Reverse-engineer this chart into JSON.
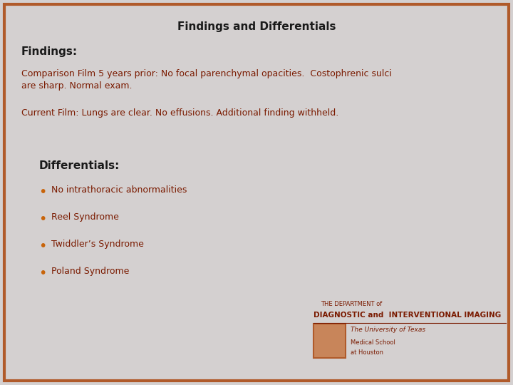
{
  "title": "Findings and Differentials",
  "background_color": "#d4d0d0",
  "border_color": "#b05a2a",
  "title_color": "#1a1a1a",
  "header_color": "#1a1a1a",
  "text_color": "#7a1a00",
  "findings_header": "Findings:",
  "comparison_text": "Comparison Film 5 years prior: No focal parenchymal opacities.  Costophrenic sulci\nare sharp. Normal exam.",
  "current_text": "Current Film: Lungs are clear. No effusions. Additional finding withheld.",
  "differentials_header": "Differentials:",
  "bullet_items": [
    "No intrathoracic abnormalities",
    "Reel Syndrome",
    "Twiddler’s Syndrome",
    "Poland Syndrome"
  ],
  "bullet_color": "#c8640a",
  "dept_line1": "THE DEPARTMENT of",
  "dept_line2": "DIAGNOSTIC and  INTERVENTIONAL IMAGING",
  "univ_line1": "The University of Texas",
  "univ_line2": "Medical School",
  "univ_line3": "at Houston",
  "title_fontsize": 11,
  "header_fontsize": 11,
  "body_fontsize": 9,
  "bullet_fontsize": 9,
  "bullet_dot_fontsize": 14
}
